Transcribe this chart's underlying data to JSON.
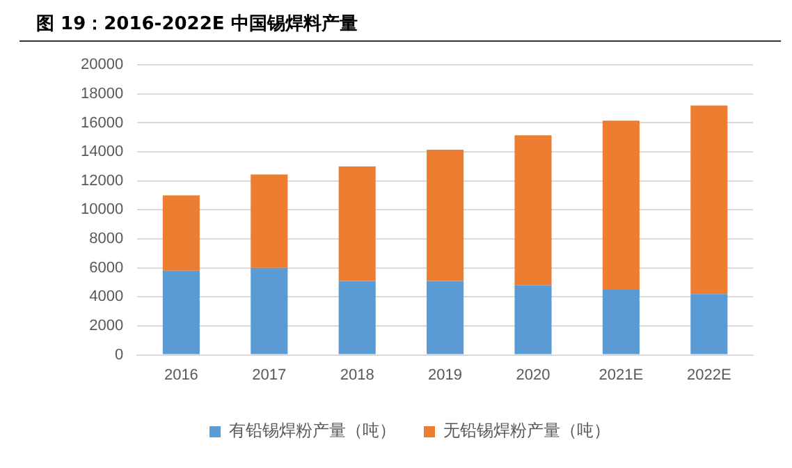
{
  "chart_data": {
    "type": "bar",
    "title": "图 19：2016-2022E 中国锡焊料产量",
    "categories": [
      "2016",
      "2017",
      "2018",
      "2019",
      "2020",
      "2021E",
      "2022E"
    ],
    "stacked": true,
    "series": [
      {
        "name": "有铅锡焊粉产量（吨）",
        "color": "#5b9bd5",
        "values": [
          5800,
          6000,
          5100,
          5100,
          4800,
          4500,
          4200
        ]
      },
      {
        "name": "无铅锡焊粉产量（吨）",
        "color": "#ed7d31",
        "values": [
          5200,
          6450,
          7900,
          9050,
          10350,
          11650,
          13000
        ]
      }
    ],
    "ylim": [
      0,
      20000
    ],
    "yticks": [
      0,
      2000,
      4000,
      6000,
      8000,
      10000,
      12000,
      14000,
      16000,
      18000,
      20000
    ],
    "grid": "y",
    "legend": "bottom"
  }
}
